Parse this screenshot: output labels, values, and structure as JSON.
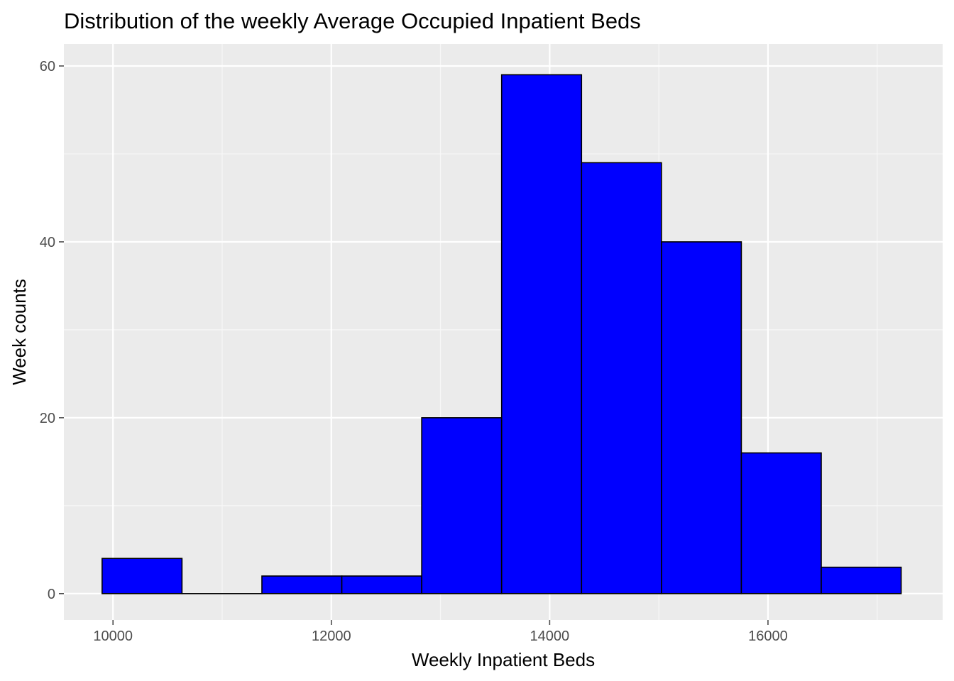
{
  "chart_data": {
    "type": "histogram",
    "title": "Distribution of the weekly Average Occupied Inpatient Beds",
    "xlabel": "Weekly Inpatient Beds",
    "ylabel": "Week counts",
    "xlim": [
      9550,
      17600
    ],
    "ylim": [
      -3,
      62.5
    ],
    "x_ticks": [
      10000,
      12000,
      14000,
      16000
    ],
    "y_ticks": [
      0,
      20,
      40,
      60
    ],
    "x_minor": [
      11000,
      13000,
      15000,
      17000
    ],
    "y_minor": [
      10,
      30,
      50
    ],
    "bins": [
      {
        "x0": 9900,
        "x1": 10632,
        "count": 4
      },
      {
        "x0": 10632,
        "x1": 11364,
        "count": 0
      },
      {
        "x0": 11364,
        "x1": 12096,
        "count": 2
      },
      {
        "x0": 12096,
        "x1": 12828,
        "count": 2
      },
      {
        "x0": 12828,
        "x1": 13560,
        "count": 20
      },
      {
        "x0": 13560,
        "x1": 14292,
        "count": 59
      },
      {
        "x0": 14292,
        "x1": 15024,
        "count": 49
      },
      {
        "x0": 15024,
        "x1": 15756,
        "count": 40
      },
      {
        "x0": 15756,
        "x1": 16488,
        "count": 16
      },
      {
        "x0": 16488,
        "x1": 17220,
        "count": 3
      }
    ],
    "grid": true,
    "colors": {
      "bar_fill": "#0000ff",
      "bar_stroke": "#000000",
      "panel_bg": "#ebebeb",
      "grid_major": "#ffffff",
      "grid_minor": "#f7f7f7",
      "tick": "#4d4d4d"
    }
  }
}
